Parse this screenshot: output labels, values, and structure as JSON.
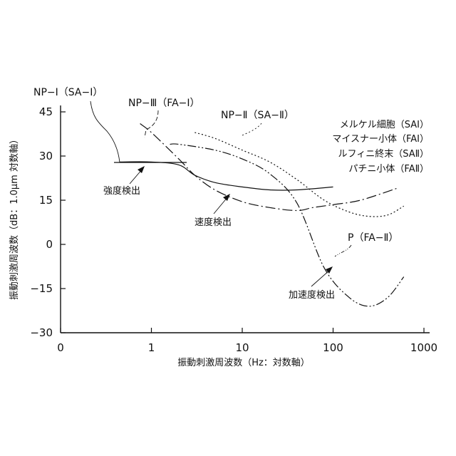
{
  "chart_data": {
    "type": "line",
    "xlabel": "振動刺激周波数（Hz：対数軸）",
    "ylabel": "振動刺激周波数（dB：1.0μm 対数軸）",
    "x_scale": "log",
    "x_ticks": [
      "0",
      "1",
      "10",
      "100",
      "1000"
    ],
    "y_ticks": [
      "45",
      "30",
      "15",
      "0",
      "−15",
      "−30"
    ],
    "ylim": [
      -30,
      45
    ],
    "grid": false,
    "legend": {
      "position": "top-right",
      "entries": [
        "メルケル細胞（SAⅠ）",
        "マイスナー小体（FAⅠ）",
        "ルフィニ終末（SAⅡ）",
        "パチニ小体（FAⅡ）"
      ]
    },
    "series": [
      {
        "name": "NP−Ⅰ（SA−Ⅰ）",
        "style": "solid",
        "x": [
          0.45,
          1.0,
          2.0,
          3.0,
          5.0,
          10.0,
          20.0,
          40.0,
          100.0
        ],
        "y": [
          28,
          28,
          27,
          23.5,
          21,
          19.5,
          18.5,
          18.5,
          19.5
        ]
      },
      {
        "name": "NP−Ⅲ（FA−Ⅰ）",
        "style": "dash-dot",
        "x": [
          0.75,
          1.0,
          2.0,
          3.0,
          5.0,
          10.0,
          20.0,
          40.0,
          60.0,
          100.0,
          200.0,
          500.0
        ],
        "y": [
          41,
          38,
          29,
          23.5,
          18.5,
          14.5,
          12.5,
          11.5,
          12.5,
          13.5,
          15,
          19
        ]
      },
      {
        "name": "NP−Ⅱ（SA−Ⅱ）",
        "style": "dotted",
        "x": [
          3.0,
          5.0,
          10.0,
          20.0,
          40.0,
          80.0,
          150.0,
          250.0,
          400.0,
          600.0
        ],
        "y": [
          38,
          36,
          32,
          28,
          22,
          15,
          11,
          9.5,
          10,
          13
        ]
      },
      {
        "name": "P（FA−Ⅱ）",
        "style": "dash-dot-dot",
        "x": [
          1.6,
          2.0,
          5.0,
          10.0,
          20.0,
          40.0,
          80.0,
          150.0,
          250.0,
          400.0,
          600.0
        ],
        "y": [
          34,
          34,
          32,
          29,
          24,
          14,
          -8,
          -18,
          -21,
          -18,
          -11
        ]
      }
    ],
    "annotations": [
      "強度検出",
      "速度検出",
      "加速度検出"
    ]
  }
}
